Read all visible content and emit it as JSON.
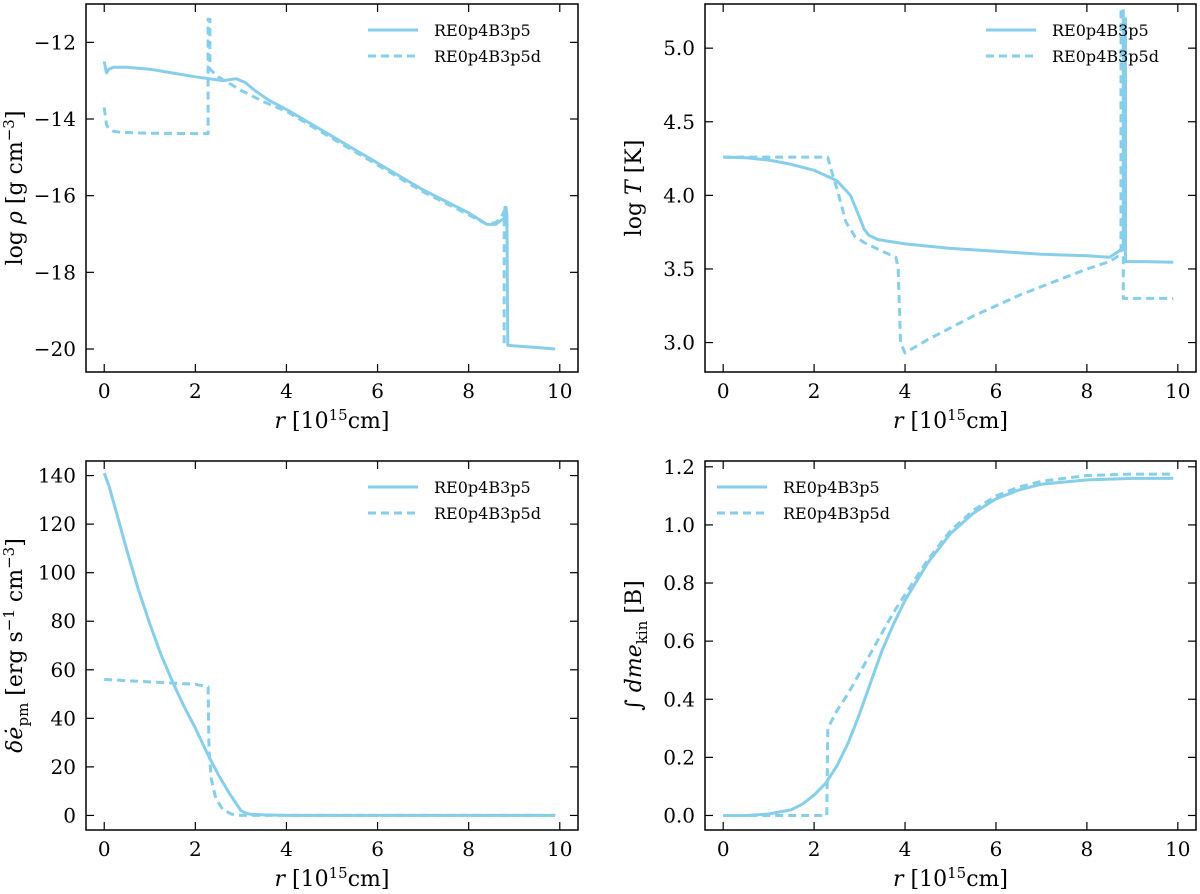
{
  "chart_data": [
    {
      "type": "line",
      "panel": "top-left",
      "xlabel": "r [10^15 cm]",
      "ylabel": "log ρ [g cm^-3]",
      "xlim": [
        -0.4,
        10.4
      ],
      "ylim": [
        -20.6,
        -11.0
      ],
      "xticks": [
        0,
        2,
        4,
        6,
        8,
        10
      ],
      "yticks": [
        -20,
        -18,
        -16,
        -14,
        -12
      ],
      "legend_loc": "top-right",
      "series": [
        {
          "name": "RE0p4B3p5",
          "style": "solid",
          "x": [
            0.0,
            0.05,
            0.1,
            0.2,
            0.5,
            1.0,
            1.5,
            2.0,
            2.3,
            2.6,
            2.9,
            3.1,
            3.3,
            3.6,
            4.0,
            4.5,
            5.0,
            5.5,
            6.0,
            6.5,
            7.0,
            7.5,
            8.0,
            8.4,
            8.6,
            8.7,
            8.78,
            8.8,
            8.82,
            8.84,
            8.86,
            9.0,
            9.5,
            9.9
          ],
          "y": [
            -12.5,
            -12.8,
            -12.7,
            -12.65,
            -12.65,
            -12.7,
            -12.8,
            -12.9,
            -12.95,
            -13.0,
            -12.95,
            -13.05,
            -13.25,
            -13.5,
            -13.75,
            -14.1,
            -14.45,
            -14.8,
            -15.15,
            -15.5,
            -15.85,
            -16.15,
            -16.45,
            -16.75,
            -16.75,
            -16.65,
            -16.6,
            -16.3,
            -16.3,
            -16.5,
            -19.9,
            -19.92,
            -19.96,
            -20.0
          ]
        },
        {
          "name": "RE0p4B3p5d",
          "style": "dashed",
          "x": [
            0.0,
            0.05,
            0.1,
            0.2,
            0.4,
            1.0,
            2.0,
            2.28,
            2.28,
            2.32,
            2.32,
            2.5,
            3.0,
            3.5,
            4.0,
            4.5,
            5.0,
            5.5,
            6.0,
            6.5,
            7.0,
            7.5,
            8.0,
            8.4,
            8.6,
            8.72,
            8.78,
            8.78,
            8.82,
            8.82
          ],
          "y": [
            -13.7,
            -14.15,
            -14.25,
            -14.32,
            -14.35,
            -14.37,
            -14.38,
            -14.38,
            -11.4,
            -11.4,
            -12.7,
            -12.9,
            -13.25,
            -13.55,
            -13.8,
            -14.15,
            -14.5,
            -14.85,
            -15.2,
            -15.55,
            -15.9,
            -16.2,
            -16.5,
            -16.75,
            -16.7,
            -16.55,
            -16.4,
            -19.9,
            -19.9,
            -19.9
          ]
        }
      ]
    },
    {
      "type": "line",
      "panel": "top-right",
      "xlabel": "r [10^15 cm]",
      "ylabel": "log T [K]",
      "xlim": [
        -0.4,
        10.4
      ],
      "ylim": [
        2.8,
        5.3
      ],
      "xticks": [
        0,
        2,
        4,
        6,
        8,
        10
      ],
      "yticks": [
        3.0,
        3.5,
        4.0,
        4.5,
        5.0
      ],
      "legend_loc": "top-right",
      "series": [
        {
          "name": "RE0p4B3p5",
          "style": "solid",
          "x": [
            0.0,
            0.5,
            1.0,
            1.5,
            2.0,
            2.5,
            2.8,
            3.0,
            3.1,
            3.2,
            3.4,
            4.0,
            5.0,
            6.0,
            7.0,
            8.0,
            8.5,
            8.7,
            8.8,
            8.8,
            8.85,
            8.85,
            8.9,
            9.3,
            9.9
          ],
          "y": [
            4.26,
            4.255,
            4.24,
            4.21,
            4.17,
            4.1,
            4.0,
            3.85,
            3.77,
            3.73,
            3.7,
            3.67,
            3.64,
            3.62,
            3.6,
            3.59,
            3.58,
            3.62,
            3.65,
            5.2,
            5.2,
            3.55,
            3.55,
            3.55,
            3.545
          ]
        },
        {
          "name": "RE0p4B3p5d",
          "style": "dashed",
          "x": [
            0.0,
            0.5,
            1.0,
            1.5,
            2.0,
            2.3,
            2.35,
            2.5,
            2.7,
            2.9,
            3.1,
            3.5,
            3.8,
            3.85,
            3.9,
            4.0,
            4.5,
            5.0,
            5.5,
            6.0,
            6.5,
            7.0,
            7.5,
            8.0,
            8.5,
            8.75,
            8.75,
            8.8,
            8.8,
            8.82,
            9.5,
            9.9
          ],
          "y": [
            4.26,
            4.26,
            4.26,
            4.26,
            4.26,
            4.26,
            4.2,
            4.05,
            3.82,
            3.72,
            3.68,
            3.62,
            3.58,
            3.5,
            3.0,
            2.93,
            3.02,
            3.1,
            3.18,
            3.25,
            3.32,
            3.38,
            3.44,
            3.5,
            3.55,
            3.6,
            5.27,
            5.27,
            3.3,
            3.3,
            3.3,
            3.3
          ]
        }
      ]
    },
    {
      "type": "line",
      "panel": "bottom-left",
      "xlabel": "r [10^15 cm]",
      "ylabel": "δė_pm [erg s^-1 cm^-3]",
      "xlim": [
        -0.4,
        10.4
      ],
      "ylim": [
        -6,
        146
      ],
      "xticks": [
        0,
        2,
        4,
        6,
        8,
        10
      ],
      "yticks": [
        0,
        20,
        40,
        60,
        80,
        100,
        120,
        140
      ],
      "legend_loc": "top-right",
      "series": [
        {
          "name": "RE0p4B3p5",
          "style": "solid",
          "x": [
            0.0,
            0.1,
            0.25,
            0.5,
            0.75,
            1.0,
            1.25,
            1.5,
            1.75,
            2.0,
            2.25,
            2.5,
            2.75,
            3.0,
            3.1,
            3.2,
            3.5,
            4.0,
            5.0,
            6.0,
            7.0,
            8.0,
            9.0,
            9.9
          ],
          "y": [
            141,
            136,
            126,
            109,
            93,
            79,
            66,
            55,
            45,
            36,
            26,
            17,
            9,
            2,
            1,
            0.5,
            0.2,
            0,
            0,
            0,
            0,
            0,
            0,
            0
          ]
        },
        {
          "name": "RE0p4B3p5d",
          "style": "dashed",
          "x": [
            0.0,
            0.5,
            1.0,
            1.5,
            2.0,
            2.28,
            2.3,
            2.35,
            2.45,
            2.6,
            2.8,
            3.0,
            3.5,
            4.0,
            5.0,
            6.0,
            7.0,
            8.0,
            9.0,
            9.9
          ],
          "y": [
            56,
            55.5,
            55,
            54.5,
            54,
            53,
            27,
            15,
            7,
            2.5,
            0.5,
            0,
            0,
            0,
            0,
            0,
            0,
            0,
            0,
            0
          ]
        }
      ]
    },
    {
      "type": "line",
      "panel": "bottom-right",
      "xlabel": "r [10^15 cm]",
      "ylabel": "∫ dme_kin [B]",
      "xlim": [
        -0.4,
        10.4
      ],
      "ylim": [
        -0.05,
        1.22
      ],
      "xticks": [
        0,
        2,
        4,
        6,
        8,
        10
      ],
      "yticks": [
        0.0,
        0.2,
        0.4,
        0.6,
        0.8,
        1.0,
        1.2
      ],
      "legend_loc": "top-left",
      "series": [
        {
          "name": "RE0p4B3p5",
          "style": "solid",
          "x": [
            0.0,
            0.5,
            1.0,
            1.5,
            1.75,
            2.0,
            2.25,
            2.5,
            2.75,
            3.0,
            3.25,
            3.5,
            3.75,
            4.0,
            4.5,
            5.0,
            5.5,
            6.0,
            6.5,
            7.0,
            8.0,
            9.0,
            9.9
          ],
          "y": [
            0.0,
            0.0,
            0.005,
            0.02,
            0.04,
            0.07,
            0.11,
            0.17,
            0.25,
            0.35,
            0.46,
            0.57,
            0.66,
            0.74,
            0.87,
            0.97,
            1.04,
            1.09,
            1.12,
            1.14,
            1.155,
            1.16,
            1.16
          ]
        },
        {
          "name": "RE0p4B3p5d",
          "style": "dashed",
          "x": [
            0.0,
            0.5,
            1.0,
            1.5,
            2.0,
            2.28,
            2.3,
            2.5,
            2.75,
            3.0,
            3.25,
            3.5,
            3.75,
            4.0,
            4.5,
            5.0,
            5.5,
            6.0,
            6.5,
            7.0,
            8.0,
            9.0,
            9.9
          ],
          "y": [
            0.0,
            0.0,
            0.0,
            0.0,
            0.0,
            0.0,
            0.3,
            0.36,
            0.42,
            0.49,
            0.56,
            0.63,
            0.7,
            0.76,
            0.88,
            0.98,
            1.05,
            1.1,
            1.13,
            1.15,
            1.17,
            1.175,
            1.175
          ]
        }
      ]
    }
  ],
  "style": {
    "line_color": "#87ceeb",
    "axis_color": "#000000"
  }
}
